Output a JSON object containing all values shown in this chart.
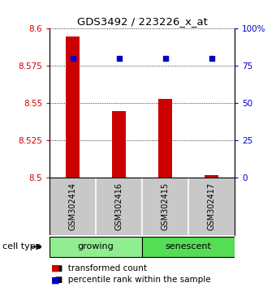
{
  "title": "GDS3492 / 223226_x_at",
  "samples": [
    "GSM302414",
    "GSM302416",
    "GSM302415",
    "GSM302417"
  ],
  "bar_values": [
    8.595,
    8.545,
    8.553,
    8.502
  ],
  "bar_baseline": 8.5,
  "percentile_values": [
    80,
    80,
    80,
    80
  ],
  "ylim_left": [
    8.5,
    8.6
  ],
  "ylim_right": [
    0,
    100
  ],
  "yticks_left": [
    8.5,
    8.525,
    8.55,
    8.575,
    8.6
  ],
  "yticks_right": [
    0,
    25,
    50,
    75,
    100
  ],
  "ytick_labels_left": [
    "8.5",
    "8.525",
    "8.55",
    "8.575",
    "8.6"
  ],
  "ytick_labels_right": [
    "0",
    "25",
    "50",
    "75",
    "100%"
  ],
  "bar_color": "#cc0000",
  "dot_color": "#0000cc",
  "groups": [
    {
      "label": "growing",
      "color": "#90ee90",
      "start": 0,
      "end": 2
    },
    {
      "label": "senescent",
      "color": "#55dd55",
      "start": 2,
      "end": 4
    }
  ],
  "group_label": "cell type",
  "legend_bar_label": "transformed count",
  "legend_dot_label": "percentile rank within the sample",
  "bg_color": "#ffffff",
  "plot_bg_color": "#ffffff",
  "sample_box_color": "#c8c8c8",
  "bar_width": 0.3
}
